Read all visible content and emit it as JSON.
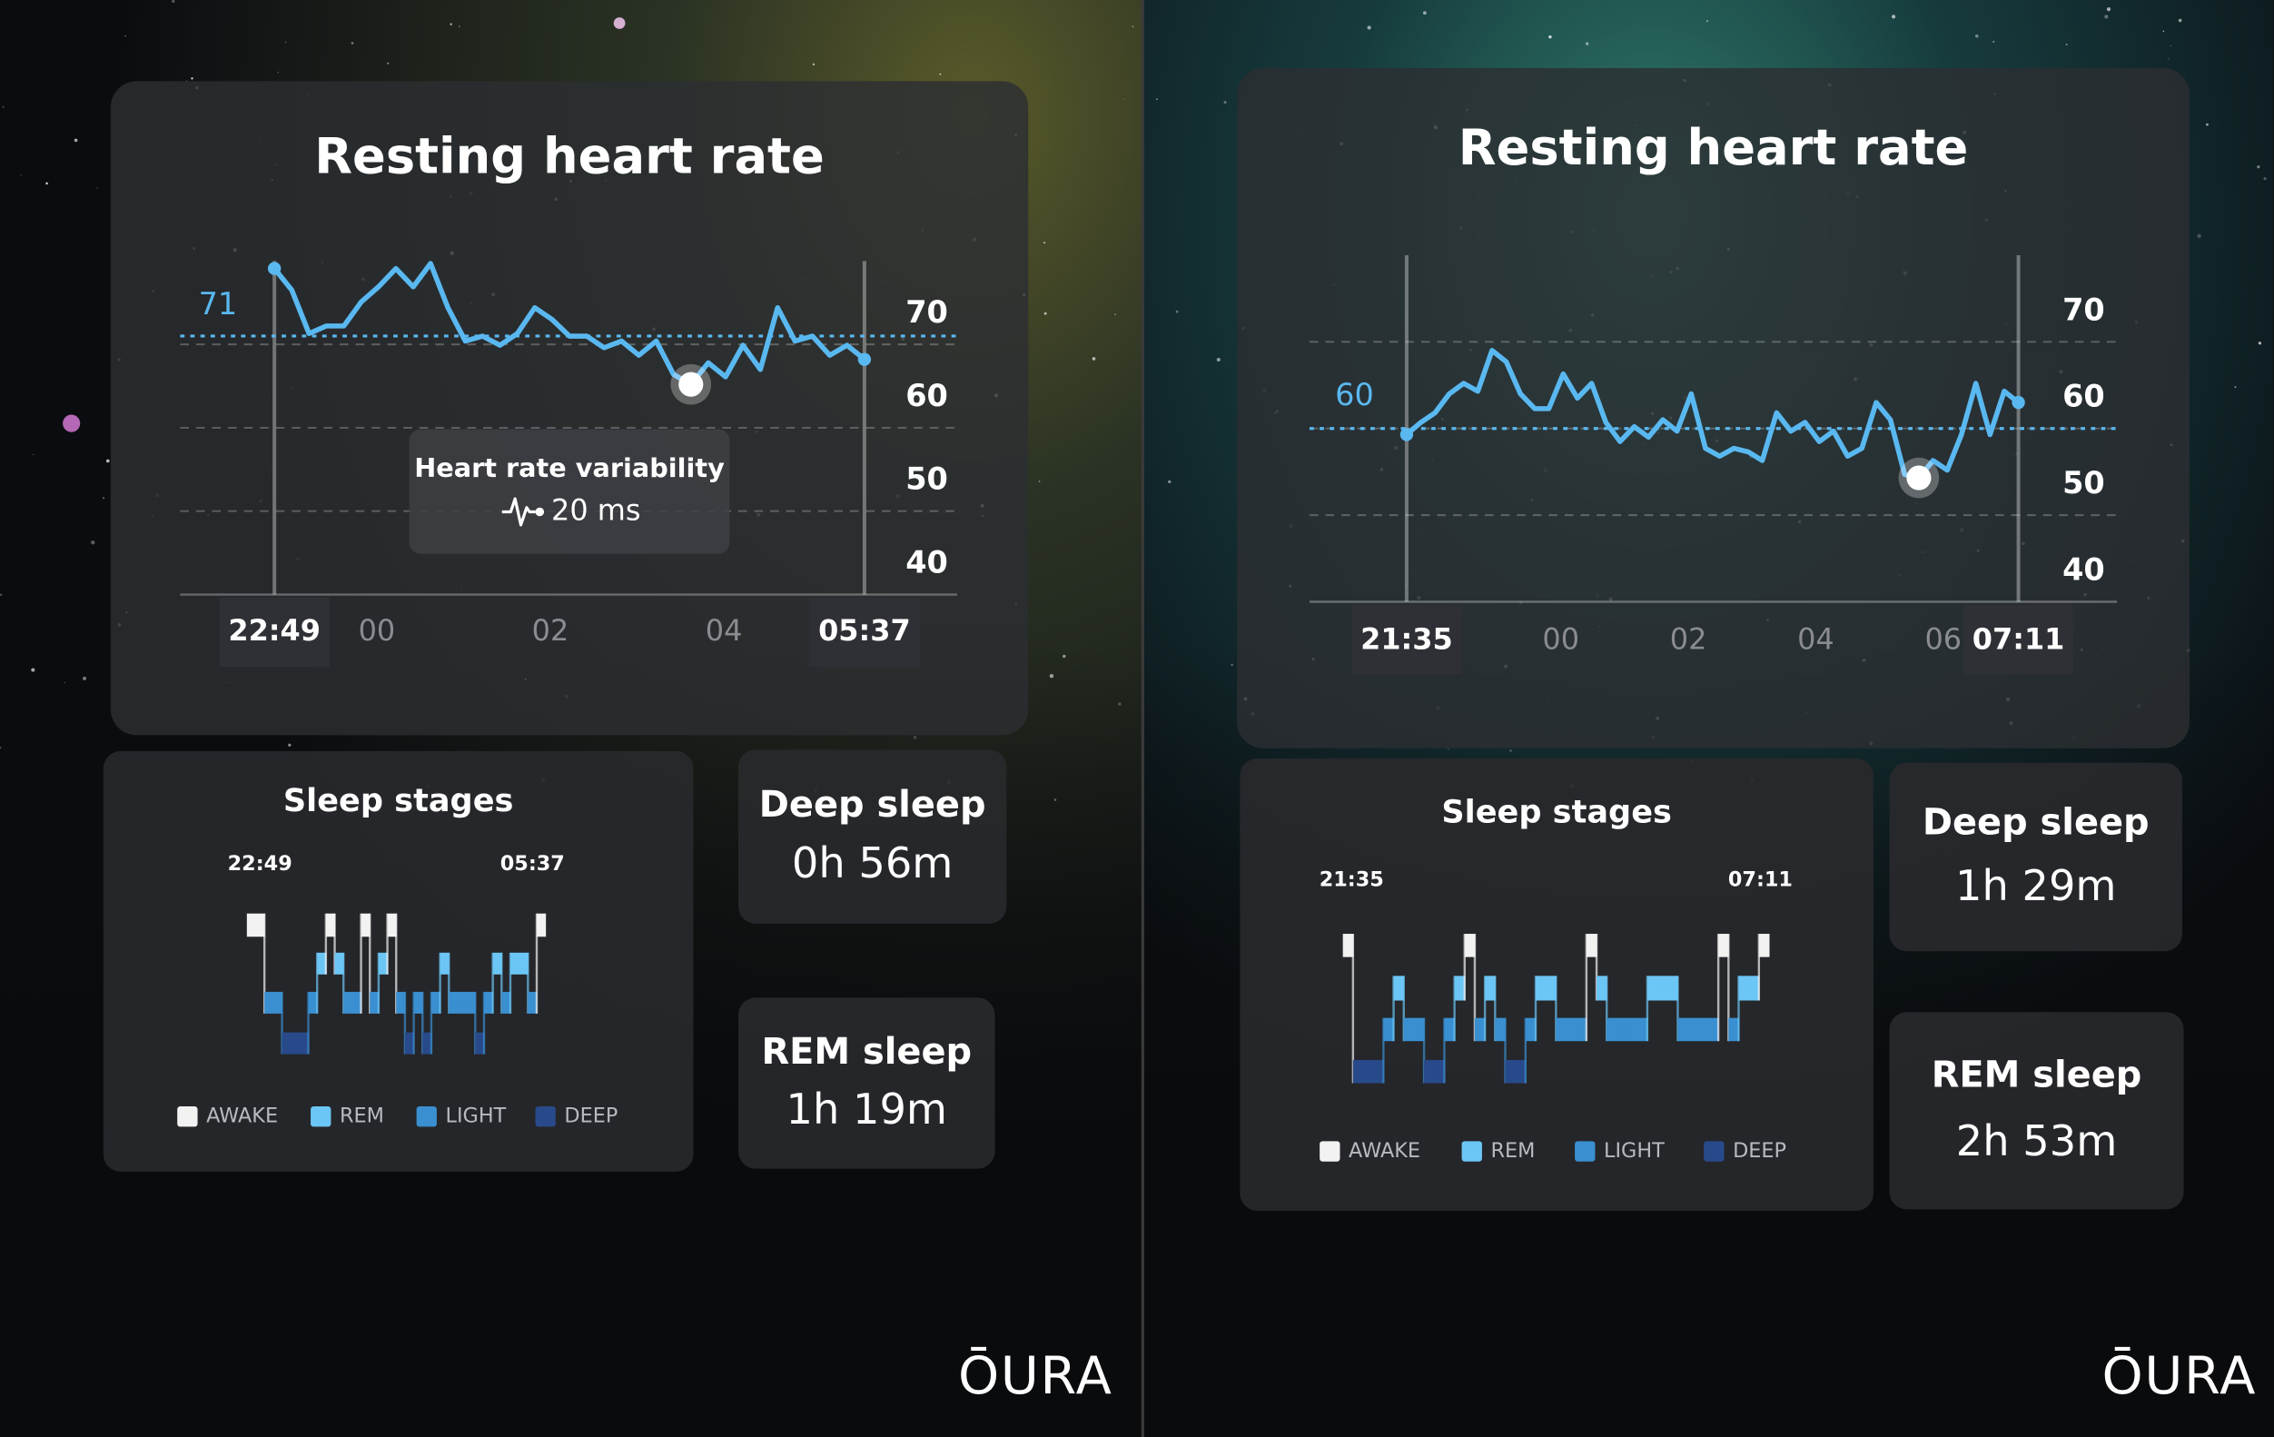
{
  "panels": [
    {
      "heart_rate": {
        "title": "Resting heart rate",
        "average": 71,
        "color": "#5ab8f0",
        "ylim": [
          40,
          80
        ],
        "yticks": [
          40,
          50,
          60,
          70
        ],
        "x_start": {
          "value": 22.82,
          "label": "22:49"
        },
        "x_end": {
          "value": 29.62,
          "label": "05:37"
        },
        "xticks": [
          {
            "value": 24,
            "label": "00"
          },
          {
            "value": 26,
            "label": "02"
          },
          {
            "value": 28,
            "label": "04"
          }
        ],
        "values": [
          79.1,
          76.5,
          71.3,
          72.2,
          72.2,
          75.1,
          76.9,
          79.1,
          76.9,
          79.7,
          74.4,
          70.4,
          71,
          69.9,
          71.3,
          74.4,
          73,
          71,
          71,
          69.6,
          70.4,
          68.7,
          70.4,
          66.4,
          65.2,
          67.8,
          66.1,
          69.9,
          67,
          74.4,
          70.4,
          71,
          68.7,
          69.9,
          68.2
        ]
      },
      "hrv": {
        "label": "Heart rate variability",
        "value": "20 ms"
      },
      "sleep_stages": {
        "title": "Sleep stages",
        "start": "22:49",
        "end": "05:37",
        "legend": [
          {
            "name": "AWAKE",
            "color": "#f2f2f2"
          },
          {
            "name": "REM",
            "color": "#6cc6f5"
          },
          {
            "name": "LIGHT",
            "color": "#3a8fd0"
          },
          {
            "name": "DEEP",
            "color": "#284a8a"
          }
        ],
        "stages": [
          "AWAKE",
          "AWAKE",
          "LIGHT",
          "LIGHT",
          "DEEP",
          "DEEP",
          "DEEP",
          "LIGHT",
          "REM",
          "AWAKE",
          "REM",
          "LIGHT",
          "LIGHT",
          "AWAKE",
          "LIGHT",
          "REM",
          "AWAKE",
          "LIGHT",
          "DEEP",
          "LIGHT",
          "DEEP",
          "LIGHT",
          "REM",
          "LIGHT",
          "LIGHT",
          "LIGHT",
          "DEEP",
          "LIGHT",
          "REM",
          "LIGHT",
          "REM",
          "REM",
          "LIGHT",
          "AWAKE"
        ]
      },
      "cards": [
        {
          "title": "Deep sleep",
          "value": "0h 56m"
        },
        {
          "title": "REM sleep",
          "value": "1h 19m"
        }
      ],
      "logo": "ŌURA"
    },
    {
      "heart_rate": {
        "title": "Resting heart rate",
        "average": 60,
        "color": "#5ab8f0",
        "ylim": [
          40,
          80
        ],
        "yticks": [
          40,
          50,
          60,
          70
        ],
        "x_start": {
          "value": 21.58,
          "label": "21:35"
        },
        "x_end": {
          "value": 31.18,
          "label": "07:11"
        },
        "xticks": [
          {
            "value": 24,
            "label": "00"
          },
          {
            "value": 26,
            "label": "02"
          },
          {
            "value": 28,
            "label": "04"
          },
          {
            "value": 30,
            "label": "06"
          }
        ],
        "values": [
          59.3,
          60.7,
          61.8,
          64,
          65.2,
          64.3,
          69,
          67.7,
          64,
          62.3,
          62.3,
          66.3,
          63.5,
          65.2,
          60.7,
          58.5,
          60.2,
          59,
          61,
          59.7,
          64,
          57.7,
          56.8,
          57.7,
          57.3,
          56.3,
          61.8,
          59.7,
          60.7,
          58.5,
          59.7,
          56.8,
          57.7,
          63,
          61,
          54.7,
          54.3,
          56.3,
          55.2,
          59.3,
          65.2,
          59.3,
          64.3,
          63
        ]
      },
      "sleep_stages": {
        "title": "Sleep stages",
        "start": "21:35",
        "end": "07:11",
        "legend": [
          {
            "name": "AWAKE",
            "color": "#f2f2f2"
          },
          {
            "name": "REM",
            "color": "#6cc6f5"
          },
          {
            "name": "LIGHT",
            "color": "#3a8fd0"
          },
          {
            "name": "DEEP",
            "color": "#284a8a"
          }
        ],
        "stages": [
          "AWAKE",
          "DEEP",
          "DEEP",
          "DEEP",
          "LIGHT",
          "REM",
          "LIGHT",
          "LIGHT",
          "DEEP",
          "DEEP",
          "LIGHT",
          "REM",
          "AWAKE",
          "LIGHT",
          "REM",
          "LIGHT",
          "DEEP",
          "DEEP",
          "LIGHT",
          "REM",
          "REM",
          "LIGHT",
          "LIGHT",
          "LIGHT",
          "AWAKE",
          "REM",
          "LIGHT",
          "LIGHT",
          "LIGHT",
          "LIGHT",
          "REM",
          "REM",
          "REM",
          "LIGHT",
          "LIGHT",
          "LIGHT",
          "LIGHT",
          "AWAKE",
          "LIGHT",
          "REM",
          "REM",
          "AWAKE"
        ]
      },
      "cards": [
        {
          "title": "Deep sleep",
          "value": "1h 29m"
        },
        {
          "title": "REM sleep",
          "value": "2h 53m"
        }
      ],
      "logo": "ŌURA"
    }
  ]
}
